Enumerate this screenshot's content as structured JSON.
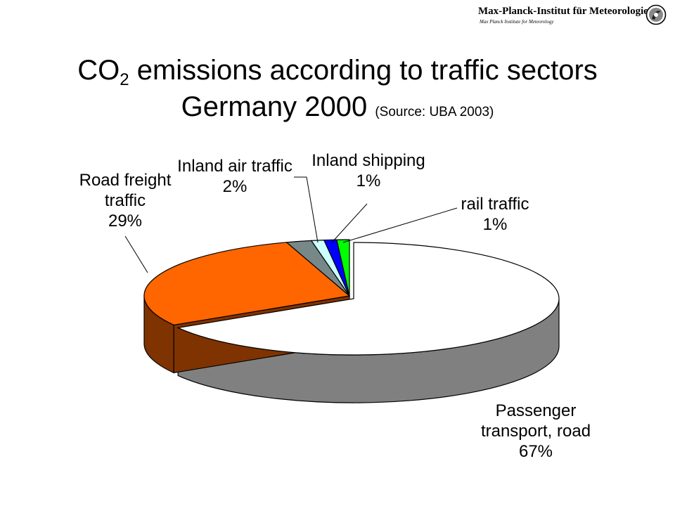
{
  "header": {
    "org_name": "Max-Planck-Institut für Meteorologie",
    "org_subtitle": "Max Planck Institute for Meteorology",
    "logo_icon": "mpi-logo-icon"
  },
  "title": {
    "prefix": "CO",
    "subscript": "2",
    "main": " emissions according to traffic sectors",
    "line2": "Germany 2000",
    "source": "(Source: UBA 2003)"
  },
  "chart_data": {
    "type": "pie",
    "title": "CO2 emissions according to traffic sectors Germany 2000",
    "slices": [
      {
        "label": "Passenger transport, road",
        "label_lines": [
          "Passenger",
          "transport, road"
        ],
        "value_text": "67%",
        "value": 67,
        "color": "#ffffff",
        "side_color": "#808080"
      },
      {
        "label": "Road freight traffic",
        "label_lines": [
          "Road freight",
          "traffic"
        ],
        "value_text": "29%",
        "value": 29,
        "color": "#ff6600",
        "side_color": "#7f3300"
      },
      {
        "label": "Inland air traffic",
        "label_lines": [
          "Inland air traffic"
        ],
        "value_text": "2%",
        "value": 2,
        "color": "#778888",
        "side_color": "#445555"
      },
      {
        "label": "Inland shipping",
        "label_lines": [
          "Inland shipping"
        ],
        "value_text": "1%",
        "value": 1,
        "color": "#ccffff",
        "side_color": "#88bbbb"
      },
      {
        "label": "rail traffic",
        "label_lines": [
          "rail traffic"
        ],
        "value_text": "1%",
        "value": 1,
        "color": "#0000ff",
        "side_color": "#000080"
      },
      {
        "label": "rail traffic",
        "label_lines": [],
        "value_text": "",
        "value": 1,
        "color": "#00ff00",
        "side_color": "#008000"
      }
    ]
  }
}
